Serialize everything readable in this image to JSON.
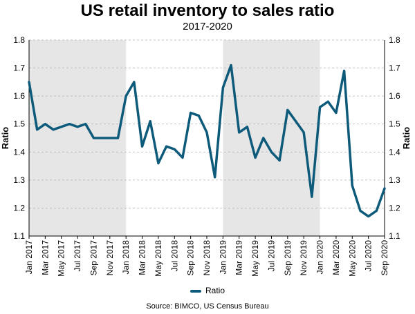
{
  "title": "US retail inventory to sales ratio",
  "subtitle": "2017-2020",
  "source": "Source: BIMCO, US Census Bureau",
  "colors": {
    "line": "#0e5a7a",
    "shade": "#e6e6e6",
    "grid": "#b0b0b0"
  },
  "chart_data": {
    "type": "line",
    "ylabel_left": "Ratio",
    "ylabel_right": "Ratio",
    "ylim": [
      1.1,
      1.8
    ],
    "yticks": [
      "1.1",
      "1.2",
      "1.3",
      "1.4",
      "1.5",
      "1.6",
      "1.7",
      "1.8"
    ],
    "grid": "horizontal dashed",
    "legend": "bottom",
    "shaded_periods": [
      {
        "start": "Jan 2017",
        "end": "Dec 2017"
      },
      {
        "start": "Jan 2019",
        "end": "Dec 2019"
      }
    ],
    "x": [
      "Jan 2017",
      "Feb 2017",
      "Mar 2017",
      "Apr 2017",
      "May 2017",
      "Jun 2017",
      "Jul 2017",
      "Aug 2017",
      "Sep 2017",
      "Oct 2017",
      "Nov 2017",
      "Dec 2017",
      "Jan 2018",
      "Feb 2018",
      "Mar 2018",
      "Apr 2018",
      "May 2018",
      "Jun 2018",
      "Jul 2018",
      "Aug 2018",
      "Sep 2018",
      "Oct 2018",
      "Nov 2018",
      "Dec 2018",
      "Jan 2019",
      "Feb 2019",
      "Mar 2019",
      "Apr 2019",
      "May 2019",
      "Jun 2019",
      "Jul 2019",
      "Aug 2019",
      "Sep 2019",
      "Oct 2019",
      "Nov 2019",
      "Dec 2019",
      "Jan 2020",
      "Feb 2020",
      "Mar 2020",
      "Apr 2020",
      "May 2020",
      "Jun 2020",
      "Jul 2020",
      "Aug 2020",
      "Sep 2020"
    ],
    "xticklabels": [
      "Jan 2017",
      "Mar 2017",
      "May 2017",
      "Jul 2017",
      "Sep 2017",
      "Nov 2017",
      "Jan 2018",
      "Mar 2018",
      "May 2018",
      "Jul 2018",
      "Sep 2018",
      "Nov 2018",
      "Jan 2019",
      "Mar 2019",
      "May 2019",
      "Jul 2019",
      "Sep 2019",
      "Nov 2019",
      "Jan 2020",
      "Mar 2020",
      "May 2020",
      "Jul 2020",
      "Sep 2020"
    ],
    "series": [
      {
        "name": "Ratio",
        "values": [
          1.65,
          1.48,
          1.5,
          1.48,
          1.49,
          1.5,
          1.49,
          1.5,
          1.45,
          1.45,
          1.45,
          1.45,
          1.6,
          1.65,
          1.42,
          1.51,
          1.36,
          1.42,
          1.41,
          1.38,
          1.54,
          1.53,
          1.47,
          1.31,
          1.63,
          1.71,
          1.47,
          1.49,
          1.38,
          1.45,
          1.4,
          1.37,
          1.55,
          1.51,
          1.47,
          1.24,
          1.56,
          1.58,
          1.54,
          1.69,
          1.28,
          1.19,
          1.17,
          1.19,
          1.27
        ]
      }
    ]
  }
}
